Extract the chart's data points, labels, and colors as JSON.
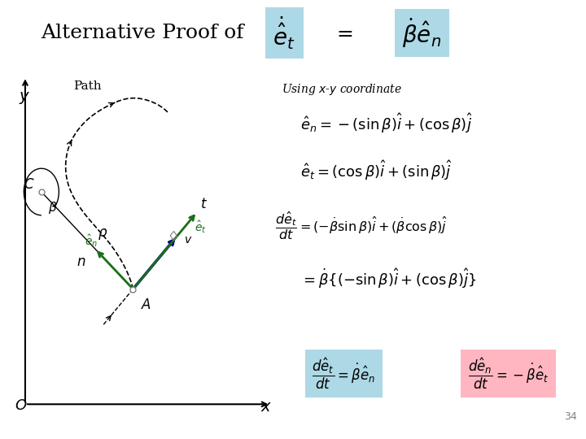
{
  "bg_color": "#ffffff",
  "green_color": "#1a6e1a",
  "blue_color": "#00008B",
  "highlight_blue": "#add8e6",
  "highlight_pink": "#ffb6c1",
  "page_number": "34"
}
